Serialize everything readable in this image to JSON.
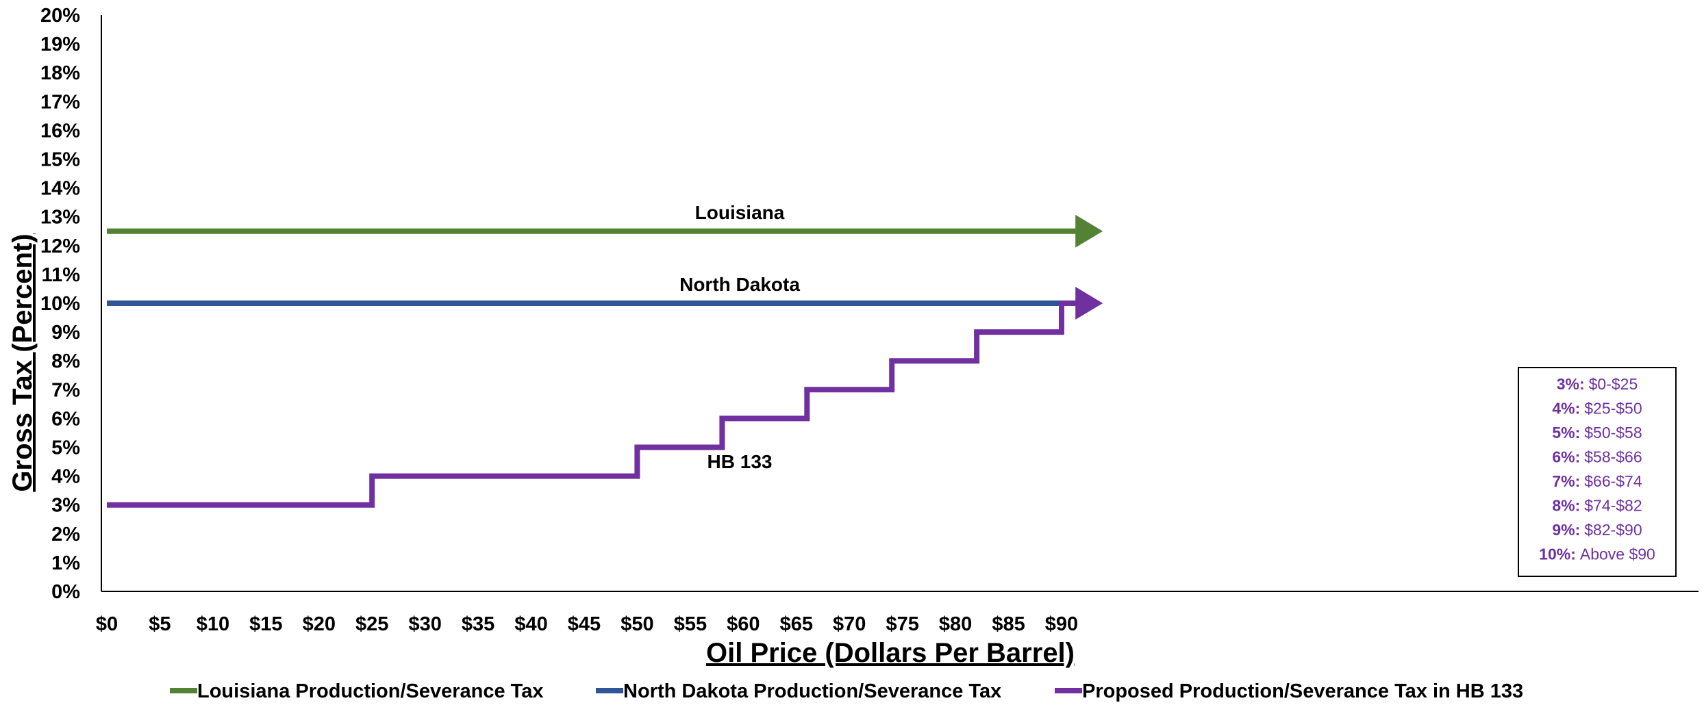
{
  "chart_data": {
    "type": "line",
    "xlabel": "Oil Price (Dollars Per Barrel)",
    "ylabel": "Gross Tax (Percent)",
    "xlim": [
      0,
      93.5
    ],
    "ylim": [
      0,
      20
    ],
    "x_ticks": [
      "$0",
      "$5",
      "$10",
      "$15",
      "$20",
      "$25",
      "$30",
      "$35",
      "$40",
      "$45",
      "$50",
      "$55",
      "$60",
      "$65",
      "$70",
      "$75",
      "$80",
      "$85",
      "$90"
    ],
    "y_ticks": [
      "0%",
      "1%",
      "2%",
      "3%",
      "4%",
      "5%",
      "6%",
      "7%",
      "8%",
      "9%",
      "10%",
      "11%",
      "12%",
      "13%",
      "14%",
      "15%",
      "16%",
      "17%",
      "18%",
      "19%",
      "20%"
    ],
    "grid": false,
    "legend_position": "bottom",
    "series": [
      {
        "name": "Louisiana Production/Severance Tax",
        "label": "Louisiana",
        "color": "#548235",
        "points": [
          [
            0,
            12.5
          ],
          [
            93.5,
            12.5
          ]
        ],
        "arrow": true
      },
      {
        "name": "North Dakota Production/Severance Tax",
        "label": "North Dakota",
        "color": "#2F5597",
        "points": [
          [
            0,
            10
          ],
          [
            90,
            10
          ]
        ],
        "arrow": false
      },
      {
        "name": "Proposed Production/Severance Tax in HB 133",
        "label": "HB 133",
        "color": "#7030A0",
        "points": [
          [
            0,
            3
          ],
          [
            25,
            3
          ],
          [
            25,
            4
          ],
          [
            50,
            4
          ],
          [
            50,
            5
          ],
          [
            58,
            5
          ],
          [
            58,
            6
          ],
          [
            66,
            6
          ],
          [
            66,
            7
          ],
          [
            74,
            7
          ],
          [
            74,
            8
          ],
          [
            82,
            8
          ],
          [
            82,
            9
          ],
          [
            90,
            9
          ],
          [
            90,
            10
          ],
          [
            93.5,
            10
          ]
        ],
        "arrow": true
      }
    ],
    "annotation_box": [
      {
        "rate": "3%:",
        "range": "$0-$25"
      },
      {
        "rate": "4%:",
        "range": "$25-$50"
      },
      {
        "rate": "5%:",
        "range": "$50-$58"
      },
      {
        "rate": "6%:",
        "range": "$58-$66"
      },
      {
        "rate": "7%:",
        "range": "$66-$74"
      },
      {
        "rate": "8%:",
        "range": "$74-$82"
      },
      {
        "rate": "9%:",
        "range": "$82-$90"
      },
      {
        "rate": "10%:",
        "range": "Above $90"
      }
    ]
  }
}
